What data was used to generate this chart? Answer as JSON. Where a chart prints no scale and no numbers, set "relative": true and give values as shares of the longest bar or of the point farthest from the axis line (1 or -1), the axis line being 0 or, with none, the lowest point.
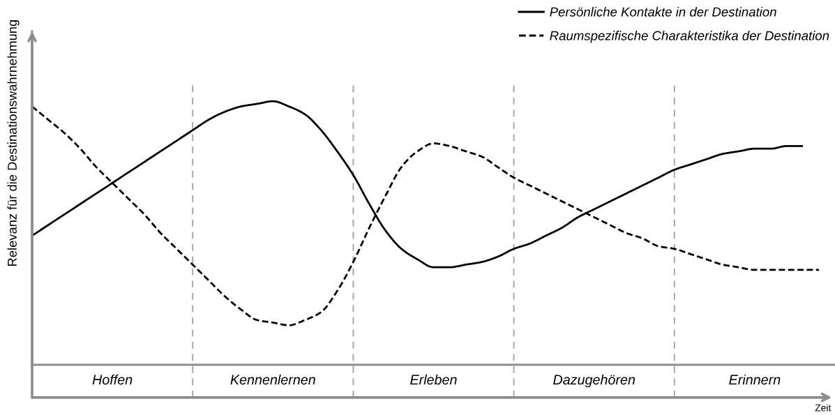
{
  "chart_data": {
    "type": "line",
    "relative": true,
    "ylabel": "Relevanz für die Destinationswahrnehmung",
    "xlabel": "Zeit",
    "categories": [
      null,
      null,
      null,
      null,
      null,
      "Hoffen",
      null,
      null,
      null,
      null,
      null,
      null,
      null,
      null,
      null,
      "Kennenlernen",
      null,
      null,
      null,
      null,
      null,
      null,
      null,
      null,
      null,
      "Erleben",
      null,
      null,
      null,
      null,
      null,
      null,
      null,
      null,
      null,
      "Dazugehören",
      null,
      null,
      null,
      null,
      null,
      null,
      null,
      null,
      null,
      "Erinnern",
      null,
      null,
      null,
      null,
      null
    ],
    "grid": "x",
    "legend": "top right",
    "series": [
      {
        "name": "Persönliche Kontakte in der Destination",
        "color": "#000000",
        "line_style": "solid",
        "values": [
          0.49,
          0.53,
          0.57,
          0.61,
          0.65,
          0.69,
          0.73,
          0.77,
          0.81,
          0.85,
          0.89,
          0.93,
          0.96,
          0.98,
          0.99,
          1.0,
          0.98,
          0.95,
          0.89,
          0.81,
          0.72,
          0.61,
          0.51,
          0.44,
          0.4,
          0.37,
          0.37,
          0.38,
          0.39,
          0.41,
          0.44,
          0.46,
          0.49,
          0.52,
          0.56,
          0.59,
          0.62,
          0.65,
          0.68,
          0.71,
          0.74,
          0.76,
          0.78,
          0.8,
          0.81,
          0.82,
          0.82,
          0.83,
          0.83,
          null,
          null
        ]
      },
      {
        "name": "Raumspezifische Charakteristika der Destination",
        "color": "#000000",
        "line_style": "dashed",
        "values": [
          0.98,
          0.93,
          0.88,
          0.82,
          0.75,
          0.69,
          0.63,
          0.57,
          0.5,
          0.44,
          0.38,
          0.32,
          0.26,
          0.21,
          0.17,
          0.16,
          0.15,
          0.17,
          0.2,
          0.28,
          0.39,
          0.52,
          0.64,
          0.75,
          0.81,
          0.84,
          0.83,
          0.81,
          0.79,
          0.75,
          0.71,
          0.68,
          0.65,
          0.62,
          0.59,
          0.56,
          0.53,
          0.5,
          0.48,
          0.45,
          0.44,
          0.42,
          0.4,
          0.38,
          0.37,
          0.36,
          0.36,
          0.36,
          0.36,
          0.36,
          null
        ]
      }
    ]
  }
}
